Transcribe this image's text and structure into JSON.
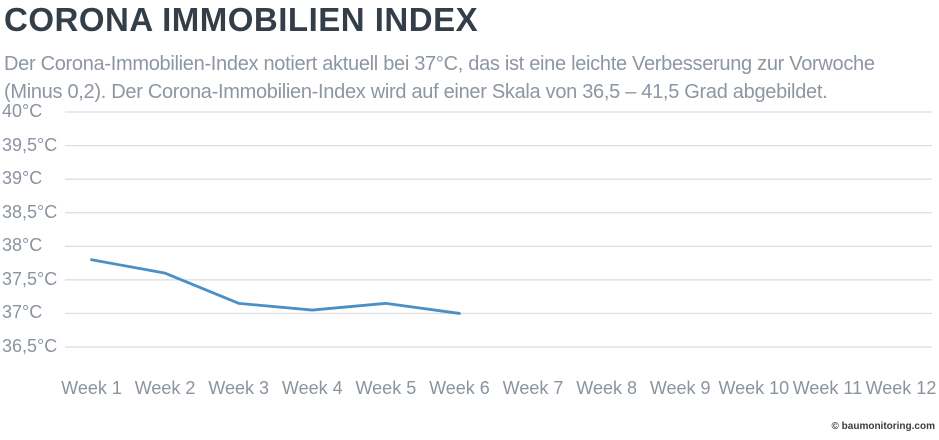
{
  "header": {
    "title": "CORONA IMMOBILIEN INDEX",
    "subtitle_line1": "Der Corona-Immobilien-Index notiert aktuell bei 37°C, das ist eine leichte Verbesserung zur Vorwoche",
    "subtitle_line2": "(Minus 0,2). Der Corona-Immobilien-Index wird auf einer Skala von 36,5 – 41,5 Grad abgebildet."
  },
  "footer": {
    "credit": "© baumonitoring.com"
  },
  "colors": {
    "title_text": "#333e49",
    "muted_text": "#8d96a3",
    "axis_text": "#8a93a0",
    "line": "#4a90c6",
    "grid": "#d9dce1",
    "credit_text": "#3c3c3c"
  },
  "chart_data": {
    "type": "line",
    "title": "CORONA IMMOBILIEN INDEX",
    "series": [
      {
        "name": "Corona-Immobilien-Index",
        "values": [
          37.8,
          37.6,
          37.15,
          37.05,
          37.15,
          37.0
        ]
      }
    ],
    "categories": [
      "Week 1",
      "Week 2",
      "Week 3",
      "Week 4",
      "Week 5",
      "Week 6",
      "Week 7",
      "Week 8",
      "Week 9",
      "Week 10",
      "Week 11",
      "Week 12"
    ],
    "current_value_text": "37°C",
    "week_over_week_change_text": "Minus 0,2",
    "stated_scale_text": "36,5 – 41,5 Grad",
    "unit": "°C",
    "xlabel": "",
    "ylabel": "",
    "ylim": [
      36.5,
      40
    ],
    "grid": "horizontal-only",
    "legend": "none",
    "y_ticks": [
      {
        "label": "40°C",
        "value": 40
      },
      {
        "label": "39,5°C",
        "value": 39.5
      },
      {
        "label": "39°C",
        "value": 39
      },
      {
        "label": "38,5°C",
        "value": 38.5
      },
      {
        "label": "38°C",
        "value": 38
      },
      {
        "label": "37,5°C",
        "value": 37.5
      },
      {
        "label": "37°C",
        "value": 37
      },
      {
        "label": "36,5°C",
        "value": 36.5
      }
    ]
  }
}
